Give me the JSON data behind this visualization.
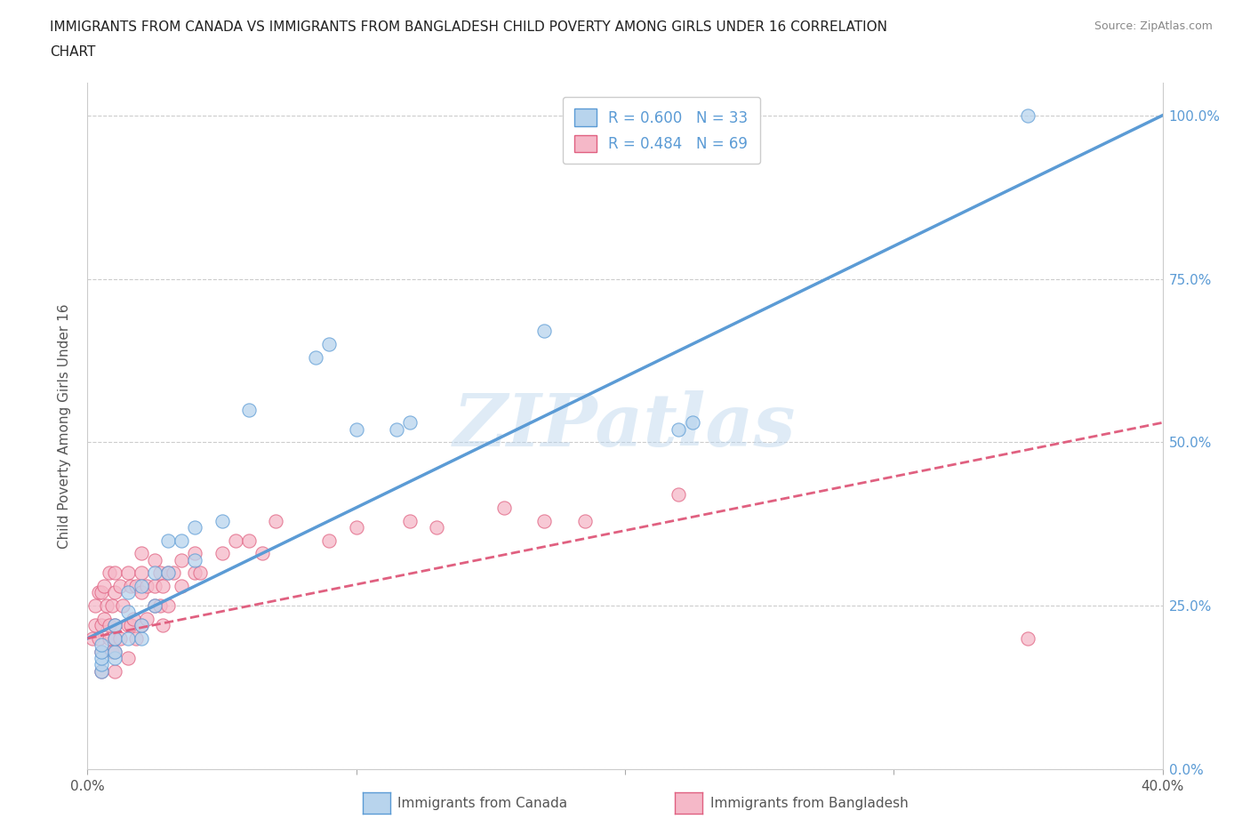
{
  "title_line1": "IMMIGRANTS FROM CANADA VS IMMIGRANTS FROM BANGLADESH CHILD POVERTY AMONG GIRLS UNDER 16 CORRELATION",
  "title_line2": "CHART",
  "source": "Source: ZipAtlas.com",
  "ylabel": "Child Poverty Among Girls Under 16",
  "watermark": "ZIPatlas",
  "legend1_label": "Immigrants from Canada",
  "legend2_label": "Immigrants from Bangladesh",
  "R1": 0.6,
  "N1": 33,
  "R2": 0.484,
  "N2": 69,
  "color_canada": "#b8d4ed",
  "color_bangladesh": "#f5b8c8",
  "line_color_canada": "#5b9bd5",
  "line_color_bangladesh": "#e06080",
  "xlim": [
    0.0,
    0.4
  ],
  "ylim": [
    0.0,
    1.05
  ],
  "canada_x": [
    0.005,
    0.005,
    0.005,
    0.005,
    0.005,
    0.01,
    0.01,
    0.01,
    0.01,
    0.015,
    0.015,
    0.015,
    0.02,
    0.02,
    0.02,
    0.025,
    0.025,
    0.03,
    0.03,
    0.035,
    0.04,
    0.04,
    0.05,
    0.06,
    0.085,
    0.09,
    0.1,
    0.115,
    0.12,
    0.17,
    0.22,
    0.225,
    0.35
  ],
  "canada_y": [
    0.15,
    0.16,
    0.17,
    0.18,
    0.19,
    0.17,
    0.18,
    0.2,
    0.22,
    0.2,
    0.24,
    0.27,
    0.2,
    0.22,
    0.28,
    0.25,
    0.3,
    0.3,
    0.35,
    0.35,
    0.32,
    0.37,
    0.38,
    0.55,
    0.63,
    0.65,
    0.52,
    0.52,
    0.53,
    0.67,
    0.52,
    0.53,
    1.0
  ],
  "bangladesh_x": [
    0.002,
    0.003,
    0.003,
    0.004,
    0.004,
    0.005,
    0.005,
    0.005,
    0.005,
    0.006,
    0.006,
    0.007,
    0.008,
    0.008,
    0.008,
    0.009,
    0.009,
    0.01,
    0.01,
    0.01,
    0.01,
    0.01,
    0.01,
    0.012,
    0.012,
    0.013,
    0.015,
    0.015,
    0.015,
    0.016,
    0.016,
    0.017,
    0.018,
    0.018,
    0.02,
    0.02,
    0.02,
    0.02,
    0.022,
    0.022,
    0.025,
    0.025,
    0.025,
    0.027,
    0.027,
    0.028,
    0.028,
    0.03,
    0.03,
    0.032,
    0.035,
    0.035,
    0.04,
    0.04,
    0.042,
    0.05,
    0.055,
    0.06,
    0.065,
    0.07,
    0.09,
    0.1,
    0.12,
    0.13,
    0.155,
    0.17,
    0.185,
    0.22,
    0.35
  ],
  "bangladesh_y": [
    0.2,
    0.22,
    0.25,
    0.2,
    0.27,
    0.15,
    0.18,
    0.22,
    0.27,
    0.23,
    0.28,
    0.25,
    0.2,
    0.22,
    0.3,
    0.18,
    0.25,
    0.15,
    0.18,
    0.2,
    0.22,
    0.27,
    0.3,
    0.2,
    0.28,
    0.25,
    0.17,
    0.22,
    0.3,
    0.22,
    0.28,
    0.23,
    0.2,
    0.28,
    0.22,
    0.27,
    0.3,
    0.33,
    0.23,
    0.28,
    0.25,
    0.28,
    0.32,
    0.25,
    0.3,
    0.22,
    0.28,
    0.25,
    0.3,
    0.3,
    0.28,
    0.32,
    0.3,
    0.33,
    0.3,
    0.33,
    0.35,
    0.35,
    0.33,
    0.38,
    0.35,
    0.37,
    0.38,
    0.37,
    0.4,
    0.38,
    0.38,
    0.42,
    0.2
  ],
  "canada_line_x0": 0.0,
  "canada_line_y0": 0.2,
  "canada_line_x1": 0.4,
  "canada_line_y1": 1.0,
  "bangladesh_line_x0": 0.0,
  "bangladesh_line_y0": 0.2,
  "bangladesh_line_x1": 0.4,
  "bangladesh_line_y1": 0.53
}
